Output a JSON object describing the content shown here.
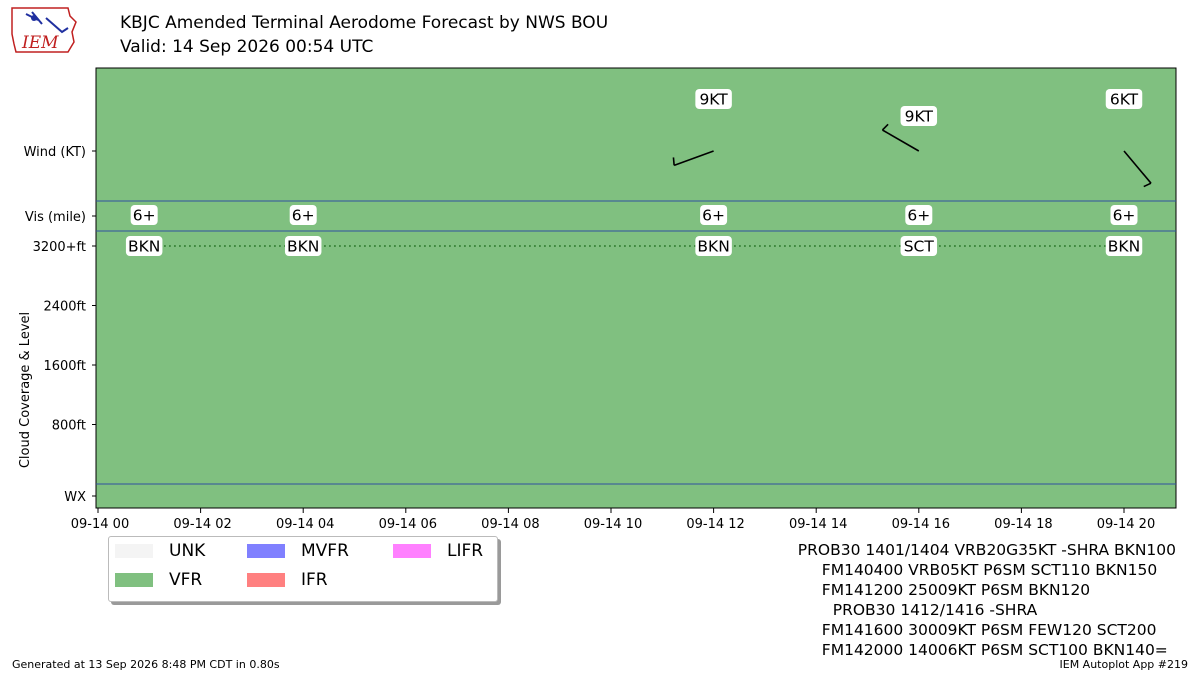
{
  "title": "KBJC Amended Terminal Aerodome Forecast by NWS BOU",
  "subtitle": "Valid: 14 Sep 2026 00:54 UTC",
  "logo_text": "IEM",
  "colors": {
    "vfr": "#80c080",
    "unk": "#f4f4f4",
    "mvfr": "#8080ff",
    "ifr": "#ff8080",
    "lifr": "#ff80ff",
    "band_line": "#3050a0"
  },
  "chart_data": {
    "type": "timeline",
    "flight_category": "VFR",
    "ylabel": "Cloud Coverage & Level",
    "row_labels": [
      "Wind (KT)",
      "Vis (mile)",
      "WX"
    ],
    "cloud_ticks": [
      {
        "value": 800,
        "label": "800ft"
      },
      {
        "value": 1600,
        "label": "1600ft"
      },
      {
        "value": 2400,
        "label": "2400ft"
      },
      {
        "value": 3200,
        "label": "3200+ft"
      }
    ],
    "x_range_hours": [
      0,
      21.5
    ],
    "x_ticks": [
      {
        "hour": 0,
        "label": "09-14 00"
      },
      {
        "hour": 2,
        "label": "09-14 02"
      },
      {
        "hour": 4,
        "label": "09-14 04"
      },
      {
        "hour": 6,
        "label": "09-14 06"
      },
      {
        "hour": 8,
        "label": "09-14 08"
      },
      {
        "hour": 10,
        "label": "09-14 10"
      },
      {
        "hour": 12,
        "label": "09-14 12"
      },
      {
        "hour": 14,
        "label": "09-14 14"
      },
      {
        "hour": 16,
        "label": "09-14 16"
      },
      {
        "hour": 18,
        "label": "09-14 18"
      },
      {
        "hour": 20,
        "label": "09-14 20"
      }
    ],
    "forecasts": [
      {
        "hour": 0.9,
        "vis": "6+",
        "cloud": "BKN",
        "wind": ""
      },
      {
        "hour": 4.0,
        "vis": "6+",
        "cloud": "BKN",
        "wind": ""
      },
      {
        "hour": 12.0,
        "vis": "6+",
        "cloud": "BKN",
        "wind": "9KT",
        "wind_dir": 250,
        "wind_kt": 9
      },
      {
        "hour": 16.0,
        "vis": "6+",
        "cloud": "SCT",
        "wind": "9KT",
        "wind_dir": 300,
        "wind_kt": 9
      },
      {
        "hour": 20.0,
        "vis": "6+",
        "cloud": "BKN",
        "wind": "6KT",
        "wind_dir": 140,
        "wind_kt": 6
      }
    ]
  },
  "legend": [
    {
      "label": "UNK",
      "color": "#f4f4f4"
    },
    {
      "label": "VFR",
      "color": "#80c080"
    },
    {
      "label": "MVFR",
      "color": "#8080ff"
    },
    {
      "label": "IFR",
      "color": "#ff8080"
    },
    {
      "label": "LIFR",
      "color": "#ff80ff"
    }
  ],
  "taf_lines": [
    "PROB30 1401/1404 VRB20G35KT -SHRA BKN100",
    "FM140400 VRB05KT P6SM SCT110 BKN150",
    "FM141200 25009KT P6SM BKN120",
    " PROB30 1412/1416 -SHRA",
    "FM141600 30009KT P6SM FEW120 SCT200",
    "FM142000 14006KT P6SM SCT100 BKN140="
  ],
  "footer_left": "Generated at 13 Sep 2026 8:48 PM CDT in 0.80s",
  "footer_right": "IEM Autoplot App #219"
}
